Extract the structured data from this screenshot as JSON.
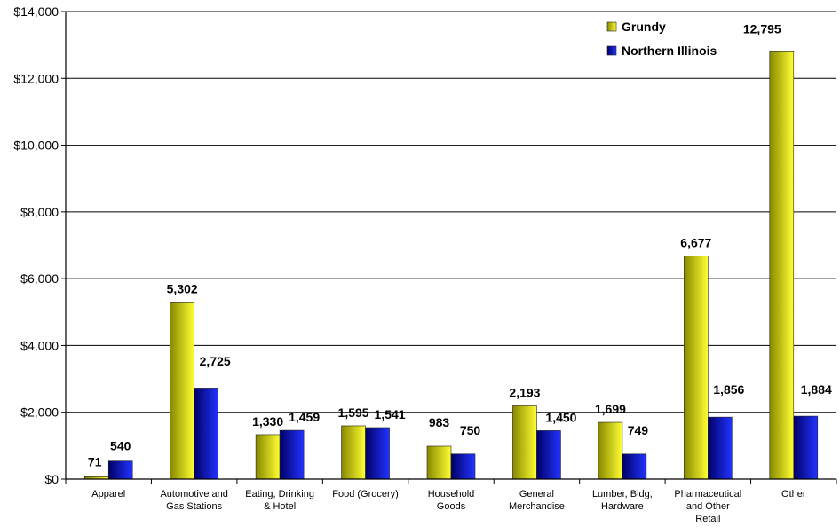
{
  "chart_data": {
    "type": "bar",
    "categories": [
      [
        "Apparel"
      ],
      [
        "Automotive and",
        "Gas Stations"
      ],
      [
        "Eating, Drinking",
        "& Hotel"
      ],
      [
        "Food (Grocery)"
      ],
      [
        "Household",
        "Goods"
      ],
      [
        "General",
        "Merchandise"
      ],
      [
        "Lumber, Bldg,",
        "Hardware"
      ],
      [
        "Pharmaceutical",
        "and Other",
        "Retail"
      ],
      [
        "Other"
      ]
    ],
    "series": [
      {
        "name": "Grundy",
        "values": [
          71,
          5302,
          1330,
          1595,
          983,
          2193,
          1699,
          6677,
          12795
        ],
        "labels": [
          "71",
          "5,302",
          "1,330",
          "1,595",
          "983",
          "2,193",
          "1,699",
          "6,677",
          "12,795"
        ],
        "color_light": "#ffff33",
        "color_dark": "#888800"
      },
      {
        "name": "Northern Illinois",
        "values": [
          540,
          2725,
          1459,
          1541,
          750,
          1450,
          749,
          1856,
          1884
        ],
        "labels": [
          "540",
          "2,725",
          "1,459",
          "1,541",
          "750",
          "1,450",
          "749",
          "1,856",
          "1,884"
        ],
        "color_light": "#2233ff",
        "color_dark": "#000066"
      }
    ],
    "ylim": [
      0,
      14000
    ],
    "yticks": [
      0,
      2000,
      4000,
      6000,
      8000,
      10000,
      12000,
      14000
    ],
    "ytick_labels": [
      "$0",
      "$2,000",
      "$4,000",
      "$6,000",
      "$8,000",
      "$10,000",
      "$12,000",
      "$14,000"
    ],
    "grid": true,
    "legend_position": "top-right",
    "title": "",
    "xlabel": "",
    "ylabel": ""
  }
}
